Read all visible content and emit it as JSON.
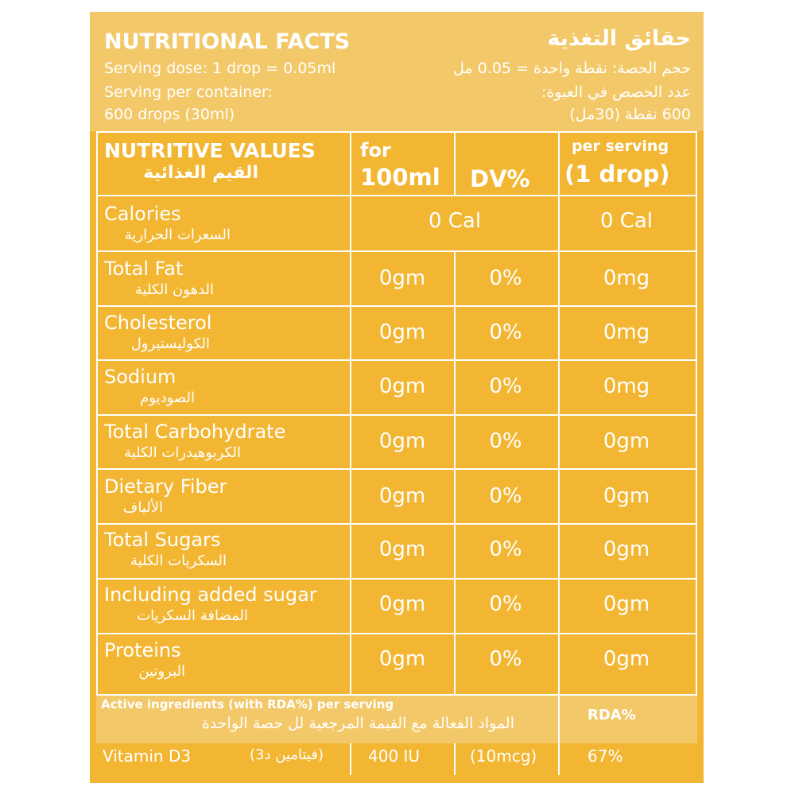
{
  "header": {
    "title_en": "NUTRITIONAL FACTS",
    "title_ar": "حقائق التغذية",
    "serving_dose_en": "Serving dose: 1 drop = 0.05ml",
    "serving_dose_ar": "حجم الحصة: نقطة واحدة = 0.05 مل",
    "servings_en_1": "Serving per container:",
    "servings_en_2": "600 drops (30ml)",
    "servings_ar_1": "عدد الحصص في العبوة:",
    "servings_ar_2": "600 نقطة (30مل)"
  },
  "table_head": {
    "nutritive_en": "NUTRITIVE VALUES",
    "nutritive_ar": "القيم الغذائية",
    "for_1": "for",
    "for_2": "100ml",
    "dv": "DV%",
    "per_serving_1": "per serving",
    "per_serving_2": "(1 drop)"
  },
  "rows": [
    {
      "en": "Calories",
      "ar": "السعرات الحرارية",
      "per100": "0 Cal",
      "dv": "",
      "serving": "0 Cal"
    },
    {
      "en": "Total Fat",
      "ar": "الدهون الكلية",
      "per100": "0gm",
      "dv": "0%",
      "serving": "0mg"
    },
    {
      "en": "Cholesterol",
      "ar": "الكوليستيرول",
      "per100": "0gm",
      "dv": "0%",
      "serving": "0mg"
    },
    {
      "en": "Sodium",
      "ar": "الصوديوم",
      "per100": "0gm",
      "dv": "0%",
      "serving": "0mg"
    },
    {
      "en": "Total Carbohydrate",
      "ar": "الكربوهيدرات الكلية",
      "per100": "0gm",
      "dv": "0%",
      "serving": "0gm"
    },
    {
      "en": "Dietary Fiber",
      "ar": "الألياف",
      "per100": "0gm",
      "dv": "0%",
      "serving": "0gm"
    },
    {
      "en": "Total Sugars",
      "ar": "السكريات الكلية",
      "per100": "0gm",
      "dv": "0%",
      "serving": "0gm"
    },
    {
      "en": "Including added sugar",
      "ar": "المضافة السكريات",
      "per100": "0gm",
      "dv": "0%",
      "serving": "0gm"
    },
    {
      "en": "Proteins",
      "ar": "البروتين",
      "per100": "0gm",
      "dv": "0%",
      "serving": "0gm"
    }
  ],
  "active": {
    "title_en": "Active ingredients (with RDA%) per serving",
    "title_ar": "المواد الفعالة مع القيمة المرجعية لل حصة الواحدة",
    "rda_header": "RDA%",
    "vitamin_en": "Vitamin D3",
    "vitamin_ar": "(فيتامين د3)",
    "amount_iu": "400 IU",
    "amount_mcg": "(10mcg)",
    "rda_value": "67%"
  },
  "colors": {
    "label_bg": "#f2b632",
    "header_bg": "#f3c868",
    "text": "#ffffff"
  }
}
